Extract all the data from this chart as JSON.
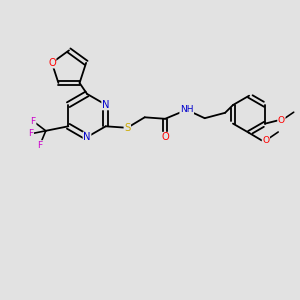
{
  "background_color": "#e2e2e2",
  "bond_color": "#000000",
  "atom_colors": {
    "O": "#ff0000",
    "N": "#0000cc",
    "S": "#ccaa00",
    "F": "#cc00cc",
    "H": "#888888",
    "C": "#000000"
  },
  "figsize": [
    3.0,
    3.0
  ],
  "dpi": 100,
  "lw": 1.3,
  "fontsize": 7.2
}
